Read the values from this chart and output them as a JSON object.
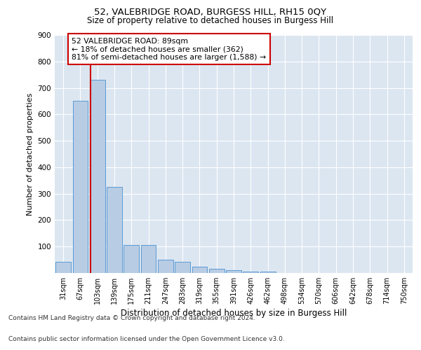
{
  "title1": "52, VALEBRIDGE ROAD, BURGESS HILL, RH15 0QY",
  "title2": "Size of property relative to detached houses in Burgess Hill",
  "xlabel": "Distribution of detached houses by size in Burgess Hill",
  "ylabel": "Number of detached properties",
  "categories": [
    "31sqm",
    "67sqm",
    "103sqm",
    "139sqm",
    "175sqm",
    "211sqm",
    "247sqm",
    "283sqm",
    "319sqm",
    "355sqm",
    "391sqm",
    "426sqm",
    "462sqm",
    "498sqm",
    "534sqm",
    "570sqm",
    "606sqm",
    "642sqm",
    "678sqm",
    "714sqm",
    "750sqm"
  ],
  "values": [
    42,
    650,
    730,
    325,
    105,
    105,
    50,
    42,
    25,
    15,
    10,
    5,
    5,
    0,
    0,
    0,
    0,
    0,
    0,
    0,
    0
  ],
  "bar_color": "#b8cce4",
  "bar_edge_color": "#5a9bd4",
  "plot_bg_color": "#dce6f1",
  "red_line_color": "#cc0000",
  "red_line_x": 1.62,
  "annotation_text": "52 VALEBRIDGE ROAD: 89sqm\n← 18% of detached houses are smaller (362)\n81% of semi-detached houses are larger (1,588) →",
  "annotation_box_color": "#ffffff",
  "annotation_box_edge": "#cc0000",
  "ylim": [
    0,
    900
  ],
  "yticks": [
    0,
    100,
    200,
    300,
    400,
    500,
    600,
    700,
    800,
    900
  ],
  "footnote1": "Contains HM Land Registry data © Crown copyright and database right 2024.",
  "footnote2": "Contains public sector information licensed under the Open Government Licence v3.0."
}
